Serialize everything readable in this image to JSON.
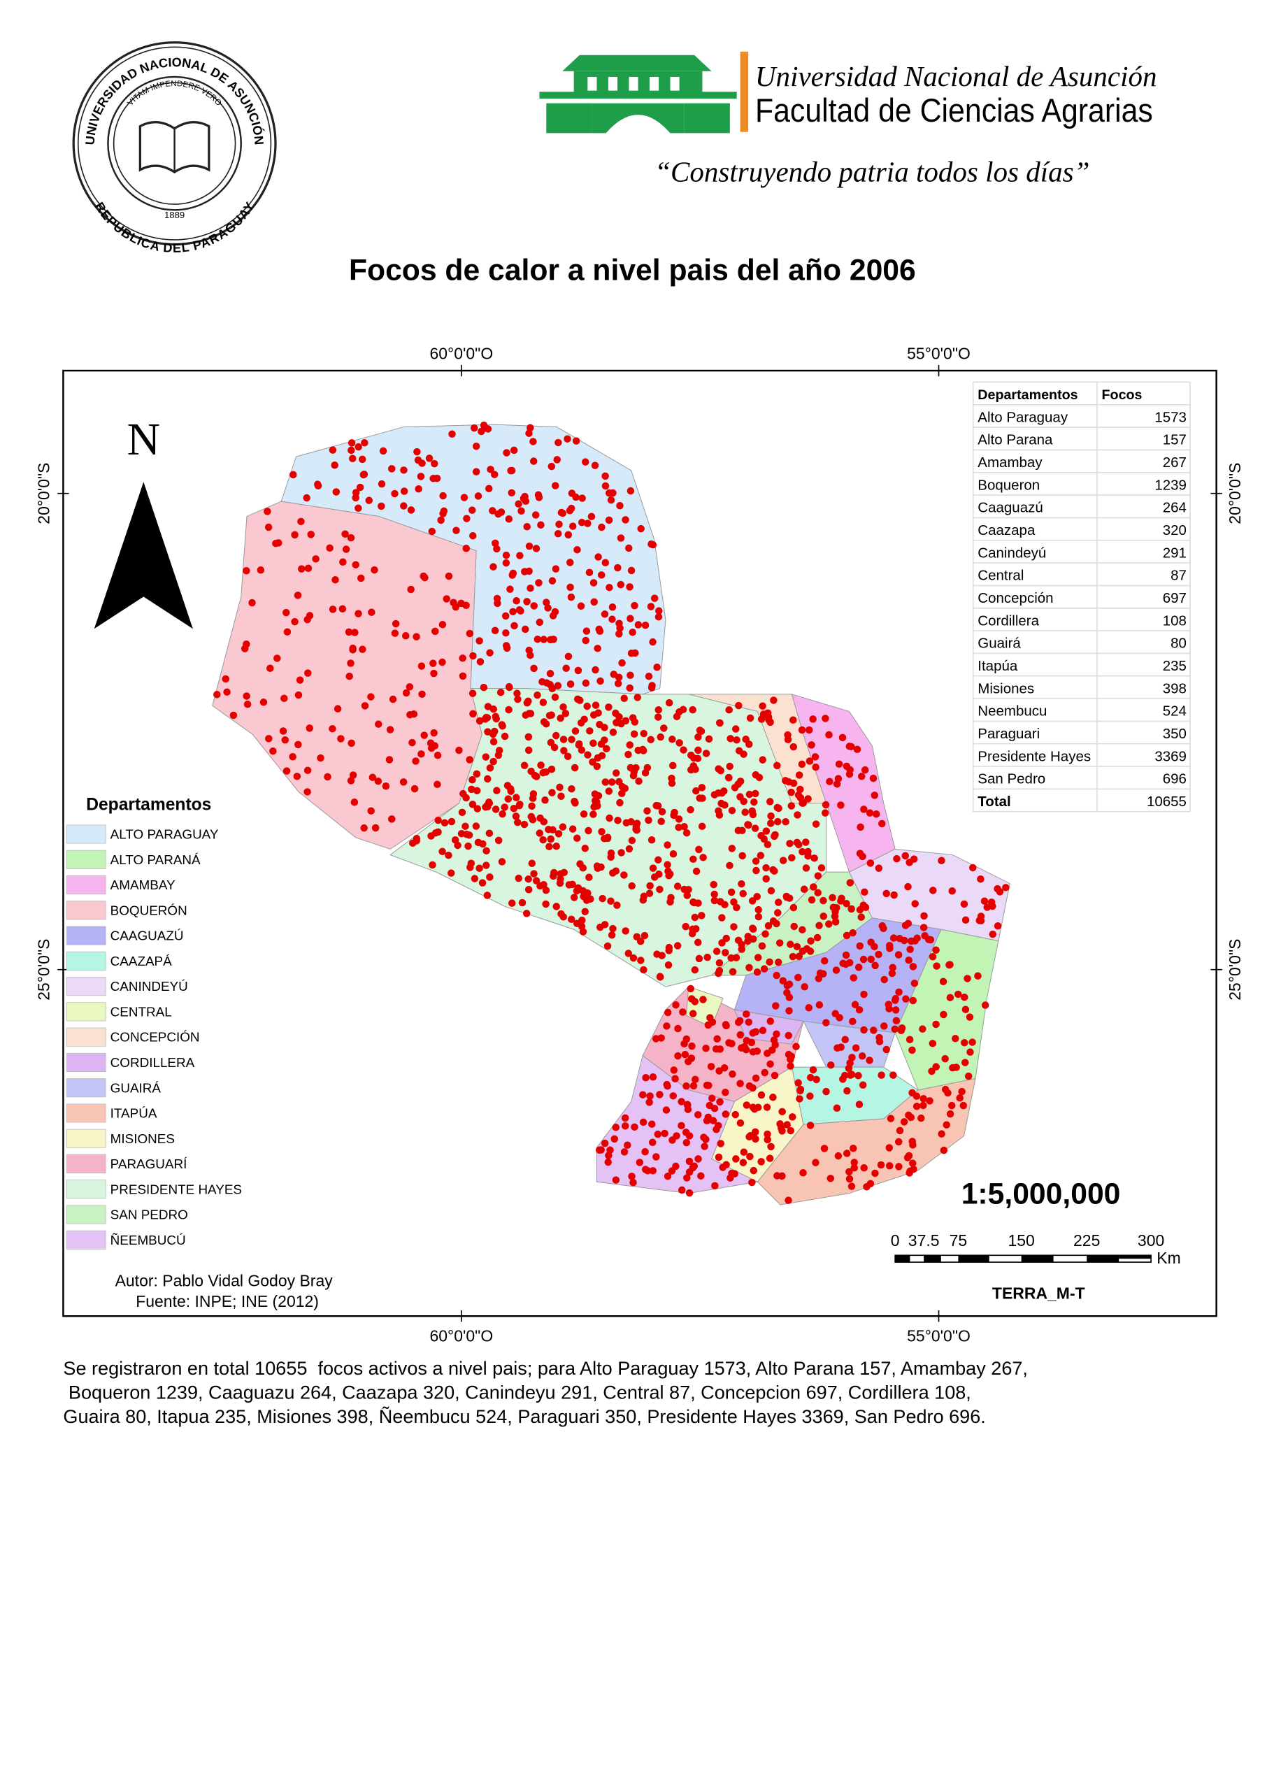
{
  "header": {
    "seal": {
      "top_text": "UNIVERSIDAD NACIONAL DE ASUNCIÓN",
      "bottom_text": "REPUBLICA DEL PARAGUAY",
      "motto": "VITAM IMPENDERE VERO",
      "year": "1889"
    },
    "university": "Universidad Nacional de Asunción",
    "faculty": "Facultad de Ciencias Agrarias",
    "slogan": "“Construyendo patria todos los días”"
  },
  "title": "Focos de calor a nivel pais del año 2006",
  "map": {
    "north": "N",
    "coordinates": {
      "top": [
        "60°0'0\"O",
        "55°0'0\"O"
      ],
      "bottom": [
        "60°0'0\"O",
        "55°0'0\"O"
      ],
      "left": [
        "20°0'0\"S",
        "25°0'0\"S"
      ],
      "right": [
        "20°0'0\"S",
        "25°0'0\"S"
      ]
    },
    "scale": "1:5,000,000",
    "scale_bar": {
      "labels": [
        "0",
        "37.5",
        "75",
        "150",
        "225",
        "300"
      ],
      "unit": "Km"
    },
    "credit": "TERRA_M-T",
    "author": "Autor: Pablo Vidal Godoy Bray",
    "source": "Fuente: INPE; INE (2012)"
  },
  "table": {
    "header": [
      "Departamentos",
      "Focos"
    ],
    "rows": [
      [
        "Alto Paraguay",
        1573
      ],
      [
        "Alto Parana",
        157
      ],
      [
        "Amambay",
        267
      ],
      [
        "Boqueron",
        1239
      ],
      [
        "Caaguazú",
        264
      ],
      [
        "Caazapa",
        320
      ],
      [
        "Canindeyú",
        291
      ],
      [
        "Central",
        87
      ],
      [
        "Concepción",
        697
      ],
      [
        "Cordillera",
        108
      ],
      [
        "Guairá",
        80
      ],
      [
        "Itapúa",
        235
      ],
      [
        "Misiones",
        398
      ],
      [
        "Neembucu",
        524
      ],
      [
        "Paraguari",
        350
      ],
      [
        "Presidente Hayes",
        3369
      ],
      [
        "San Pedro",
        696
      ],
      [
        "Total",
        10655
      ]
    ]
  },
  "legend": {
    "title": "Departamentos",
    "items": [
      {
        "label": "ALTO PARAGUAY",
        "color": "#d6eafa"
      },
      {
        "label": "ALTO PARANÁ",
        "color": "#c2f5b5"
      },
      {
        "label": "AMAMBAY",
        "color": "#f7b5ef"
      },
      {
        "label": "BOQUERÓN",
        "color": "#f9c8d0"
      },
      {
        "label": "CAAGUAZÚ",
        "color": "#b5b2f5"
      },
      {
        "label": "CAAZAPÁ",
        "color": "#b5f5e4"
      },
      {
        "label": "CANINDEYÚ",
        "color": "#ead9f7"
      },
      {
        "label": "CENTRAL",
        "color": "#e9f8c0"
      },
      {
        "label": "CONCEPCIÓN",
        "color": "#fbe2d0"
      },
      {
        "label": "CORDILLERA",
        "color": "#dcb5f3"
      },
      {
        "label": "GUAIRÁ",
        "color": "#c3c5f7"
      },
      {
        "label": "ITAPÚA",
        "color": "#f8c4b3"
      },
      {
        "label": "MISIONES",
        "color": "#f8f5c8"
      },
      {
        "label": "PARAGUARÍ",
        "color": "#f5b3c8"
      },
      {
        "label": "PRESIDENTE HAYES",
        "color": "#d8f5df"
      },
      {
        "label": "SAN PEDRO",
        "color": "#c8f2c3"
      },
      {
        "label": "ÑEEMBUCÚ",
        "color": "#e4c2f5"
      }
    ]
  },
  "text": {
    "lines": [
      "Se registraron en total 10655  focos activos a nivel pais; para Alto Paraguay 1573, Alto Parana 157, Amambay 267,",
      " Boqueron 1239, Caaguazu 264, Caazapa 320, Canindeyu 291, Central 87, Concepcion 697, Cordillera 108,",
      "Guaira 80, Itapua 235, Misiones 398, Ñeembucu 524, Paraguari 350, Presidente Hayes 3369, San Pedro 696."
    ]
  }
}
